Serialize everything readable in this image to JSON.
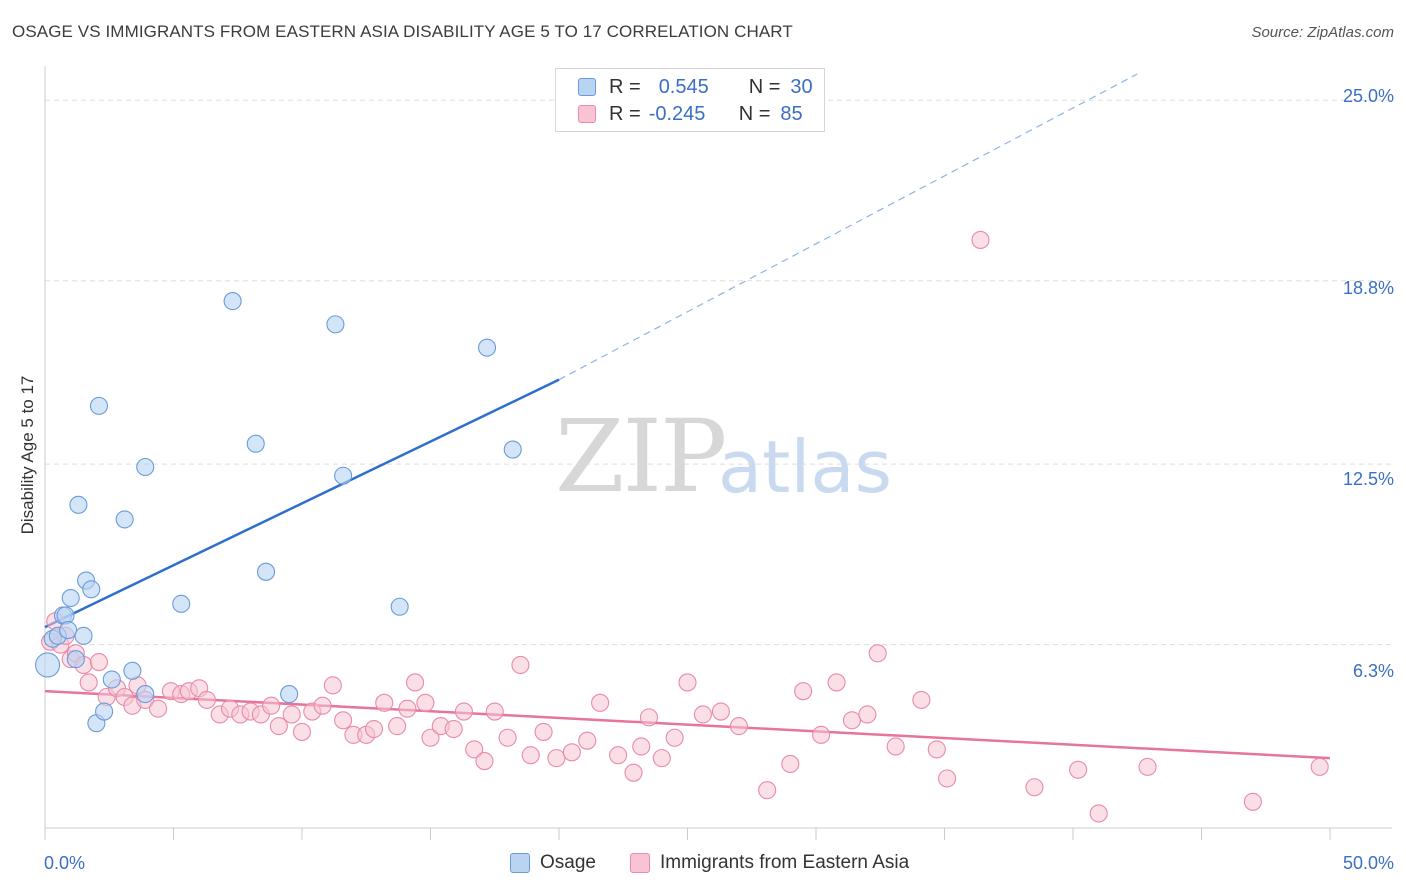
{
  "title": "OSAGE VS IMMIGRANTS FROM EASTERN ASIA DISABILITY AGE 5 TO 17 CORRELATION CHART",
  "source": "Source: ZipAtlas.com",
  "watermark": {
    "part1": "ZIP",
    "part2": "atlas"
  },
  "stats": {
    "r_label": "R =",
    "n_label": "N =",
    "osage": {
      "r": "0.545",
      "n": "30"
    },
    "immigrants": {
      "r": "-0.245",
      "n": "85"
    }
  },
  "colors": {
    "osage_fill": "#b9d3f3",
    "osage_stroke": "#6a9bd8",
    "osage_line": "#2f6fcc",
    "imm_fill": "#f8c4d3",
    "imm_stroke": "#e98aa8",
    "imm_line": "#e6749b",
    "tick_text": "#3a6fc4",
    "grid": "#dddddd"
  },
  "chart_data": {
    "type": "scatter",
    "title": "OSAGE VS IMMIGRANTS FROM EASTERN ASIA DISABILITY AGE 5 TO 17 CORRELATION CHART",
    "xlabel": "",
    "ylabel": "Disability Age 5 to 17",
    "xlim": [
      0,
      50
    ],
    "ylim": [
      0,
      25.9
    ],
    "x_tick_labels": [
      "0.0%",
      "50.0%"
    ],
    "y_ticks": [
      6.3,
      12.5,
      18.8,
      25.0
    ],
    "y_tick_labels": [
      "6.3%",
      "12.5%",
      "18.8%",
      "25.0%"
    ],
    "grid": "dashed horizontal",
    "legend_position": "bottom-center",
    "series": [
      {
        "name": "Osage",
        "r": 0.545,
        "n": 30,
        "trend": {
          "x": [
            0,
            20
          ],
          "y": [
            6.9,
            15.4
          ],
          "dashed_extension_to": [
            42.5,
            25.9
          ]
        },
        "points": [
          [
            0.1,
            5.6
          ],
          [
            0.3,
            6.5
          ],
          [
            0.5,
            6.6
          ],
          [
            0.7,
            7.3
          ],
          [
            0.8,
            7.3
          ],
          [
            0.9,
            6.8
          ],
          [
            1.0,
            7.9
          ],
          [
            1.2,
            5.8
          ],
          [
            1.3,
            11.1
          ],
          [
            1.5,
            6.6
          ],
          [
            1.6,
            8.5
          ],
          [
            1.8,
            8.2
          ],
          [
            2.0,
            3.6
          ],
          [
            2.1,
            14.5
          ],
          [
            2.3,
            4.0
          ],
          [
            2.6,
            5.1
          ],
          [
            3.1,
            10.6
          ],
          [
            3.4,
            5.4
          ],
          [
            3.9,
            4.6
          ],
          [
            3.9,
            12.4
          ],
          [
            5.3,
            7.7
          ],
          [
            7.3,
            18.1
          ],
          [
            8.2,
            13.2
          ],
          [
            8.6,
            8.8
          ],
          [
            9.5,
            4.6
          ],
          [
            11.3,
            17.3
          ],
          [
            11.6,
            12.1
          ],
          [
            13.8,
            7.6
          ],
          [
            17.2,
            16.5
          ],
          [
            18.2,
            13.0
          ]
        ]
      },
      {
        "name": "Immigrants from Eastern Asia",
        "r": -0.245,
        "n": 85,
        "trend": {
          "x": [
            0,
            50
          ],
          "y": [
            4.7,
            2.4
          ]
        },
        "points": [
          [
            0.2,
            6.4
          ],
          [
            0.4,
            7.1
          ],
          [
            0.6,
            6.3
          ],
          [
            0.8,
            6.6
          ],
          [
            1.0,
            5.8
          ],
          [
            1.2,
            6.0
          ],
          [
            1.5,
            5.6
          ],
          [
            1.7,
            5.0
          ],
          [
            2.1,
            5.7
          ],
          [
            2.4,
            4.5
          ],
          [
            2.8,
            4.8
          ],
          [
            3.1,
            4.5
          ],
          [
            3.4,
            4.2
          ],
          [
            3.6,
            4.9
          ],
          [
            3.9,
            4.4
          ],
          [
            4.4,
            4.1
          ],
          [
            4.9,
            4.7
          ],
          [
            5.3,
            4.6
          ],
          [
            5.6,
            4.7
          ],
          [
            6.0,
            4.8
          ],
          [
            6.3,
            4.4
          ],
          [
            6.8,
            3.9
          ],
          [
            7.2,
            4.1
          ],
          [
            7.6,
            3.9
          ],
          [
            8.0,
            4.0
          ],
          [
            8.4,
            3.9
          ],
          [
            8.8,
            4.2
          ],
          [
            9.1,
            3.5
          ],
          [
            9.6,
            3.9
          ],
          [
            10.0,
            3.3
          ],
          [
            10.4,
            4.0
          ],
          [
            10.8,
            4.2
          ],
          [
            11.2,
            4.9
          ],
          [
            11.6,
            3.7
          ],
          [
            12.0,
            3.2
          ],
          [
            12.5,
            3.2
          ],
          [
            12.8,
            3.4
          ],
          [
            13.2,
            4.3
          ],
          [
            13.7,
            3.5
          ],
          [
            14.1,
            4.1
          ],
          [
            14.4,
            5.0
          ],
          [
            14.8,
            4.3
          ],
          [
            15.0,
            3.1
          ],
          [
            15.4,
            3.5
          ],
          [
            15.9,
            3.4
          ],
          [
            16.3,
            4.0
          ],
          [
            16.7,
            2.7
          ],
          [
            17.1,
            2.3
          ],
          [
            17.5,
            4.0
          ],
          [
            18.0,
            3.1
          ],
          [
            18.5,
            5.6
          ],
          [
            18.9,
            2.5
          ],
          [
            19.4,
            3.3
          ],
          [
            19.9,
            2.4
          ],
          [
            20.5,
            2.6
          ],
          [
            21.1,
            3.0
          ],
          [
            21.6,
            4.3
          ],
          [
            22.3,
            2.5
          ],
          [
            22.9,
            1.9
          ],
          [
            23.2,
            2.8
          ],
          [
            23.5,
            3.8
          ],
          [
            24.0,
            2.4
          ],
          [
            24.5,
            3.1
          ],
          [
            25.0,
            5.0
          ],
          [
            25.6,
            3.9
          ],
          [
            26.3,
            4.0
          ],
          [
            27.0,
            3.5
          ],
          [
            28.1,
            1.3
          ],
          [
            29.0,
            2.2
          ],
          [
            29.5,
            4.7
          ],
          [
            30.2,
            3.2
          ],
          [
            30.8,
            5.0
          ],
          [
            31.4,
            3.7
          ],
          [
            32.0,
            3.9
          ],
          [
            32.4,
            6.0
          ],
          [
            33.1,
            2.8
          ],
          [
            34.1,
            4.4
          ],
          [
            34.7,
            2.7
          ],
          [
            35.1,
            1.7
          ],
          [
            36.4,
            20.2
          ],
          [
            38.5,
            1.4
          ],
          [
            40.2,
            2.0
          ],
          [
            41.0,
            0.5
          ],
          [
            42.9,
            2.1
          ],
          [
            47.0,
            0.9
          ],
          [
            49.6,
            2.1
          ]
        ]
      }
    ]
  }
}
